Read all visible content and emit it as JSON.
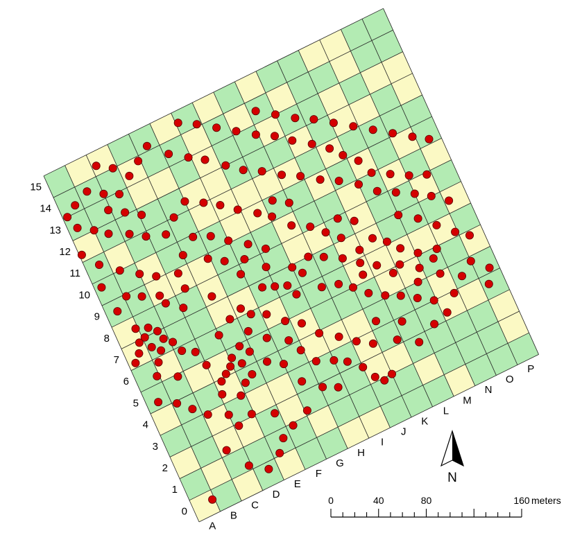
{
  "colors": {
    "cell_green": "#b3ebb3",
    "cell_yellow": "#fbf9c4",
    "grid_line": "#222222",
    "point_fill": "#d40000",
    "point_stroke": "#5a0000",
    "text": "#000000"
  },
  "grid": {
    "columns": 16,
    "rows": 16,
    "column_labels": [
      "A",
      "B",
      "C",
      "D",
      "E",
      "F",
      "G",
      "H",
      "I",
      "J",
      "K",
      "L",
      "M",
      "N",
      "O",
      "P"
    ],
    "row_labels": [
      "0",
      "1",
      "2",
      "3",
      "4",
      "5",
      "6",
      "7",
      "8",
      "9",
      "10",
      "11",
      "12",
      "13",
      "14",
      "15"
    ]
  },
  "scale_bar": {
    "tick_labels": [
      "0",
      "40",
      "80",
      "160"
    ],
    "tick_values": [
      0,
      40,
      80,
      160
    ],
    "unit": "meters"
  },
  "north_arrow": {
    "label": "N",
    "icon": "north-arrow-icon"
  },
  "points_grid_coords": [
    [
      0.9,
      0.6
    ],
    [
      2.3,
      2.2
    ],
    [
      2.9,
      1.2
    ],
    [
      3.6,
      0.7
    ],
    [
      4.3,
      1.1
    ],
    [
      4.7,
      1.6
    ],
    [
      5.3,
      1.9
    ],
    [
      6.1,
      2.2
    ],
    [
      4.8,
      2.7
    ],
    [
      3.9,
      3.1
    ],
    [
      3.0,
      3.5
    ],
    [
      3.2,
      2.9
    ],
    [
      2.2,
      3.9
    ],
    [
      1.7,
      4.4
    ],
    [
      1.2,
      4.9
    ],
    [
      3.8,
      4.0
    ],
    [
      4.2,
      4.4
    ],
    [
      4.6,
      4.6
    ],
    [
      3.1,
      4.4
    ],
    [
      3.3,
      4.9
    ],
    [
      3.6,
      5.1
    ],
    [
      3.9,
      5.3
    ],
    [
      4.4,
      5.2
    ],
    [
      4.1,
      5.6
    ],
    [
      4.6,
      5.9
    ],
    [
      4.9,
      5.5
    ],
    [
      3.0,
      5.8
    ],
    [
      5.4,
      4.8
    ],
    [
      6.0,
      4.4
    ],
    [
      6.9,
      4.6
    ],
    [
      7.3,
      3.9
    ],
    [
      8.0,
      3.6
    ],
    [
      8.5,
      3.3
    ],
    [
      9.0,
      2.8
    ],
    [
      9.3,
      2.2
    ],
    [
      9.6,
      1.9
    ],
    [
      10.0,
      2.0
    ],
    [
      7.1,
      2.8
    ],
    [
      7.7,
      2.5
    ],
    [
      6.4,
      3.4
    ],
    [
      0.5,
      5.3
    ],
    [
      0.9,
      6.3
    ],
    [
      1.7,
      5.9
    ],
    [
      0.3,
      7.2
    ],
    [
      0.6,
      7.5
    ],
    [
      0.8,
      7.9
    ],
    [
      1.2,
      7.5
    ],
    [
      1.5,
      7.2
    ],
    [
      1.8,
      7.6
    ],
    [
      2.1,
      7.3
    ],
    [
      1.1,
      8.0
    ],
    [
      1.4,
      8.3
    ],
    [
      1.7,
      8.0
    ],
    [
      0.9,
      8.5
    ],
    [
      2.3,
      6.8
    ],
    [
      2.8,
      6.5
    ],
    [
      1.2,
      6.8
    ],
    [
      2.5,
      8.9
    ],
    [
      3.1,
      8.4
    ],
    [
      3.5,
      9.1
    ],
    [
      4.4,
      8.3
    ],
    [
      5.3,
      7.3
    ],
    [
      5.6,
      6.9
    ],
    [
      6.2,
      6.6
    ],
    [
      6.8,
      6.0
    ],
    [
      7.4,
      5.6
    ],
    [
      6.5,
      7.7
    ],
    [
      7.0,
      7.5
    ],
    [
      7.5,
      7.3
    ],
    [
      8.0,
      7.9
    ],
    [
      8.3,
      7.5
    ],
    [
      7.7,
      6.8
    ],
    [
      8.8,
      6.6
    ],
    [
      9.5,
      6.4
    ],
    [
      10.0,
      6.0
    ],
    [
      10.5,
      5.5
    ],
    [
      11.1,
      5.1
    ],
    [
      11.7,
      4.8
    ],
    [
      12.3,
      4.4
    ],
    [
      12.9,
      4.0
    ],
    [
      11.3,
      3.8
    ],
    [
      10.8,
      3.2
    ],
    [
      11.6,
      2.7
    ],
    [
      12.5,
      3.1
    ],
    [
      13.2,
      3.3
    ],
    [
      13.8,
      3.9
    ],
    [
      14.4,
      4.4
    ],
    [
      13.6,
      4.9
    ],
    [
      12.9,
      5.5
    ],
    [
      12.2,
      6.0
    ],
    [
      12.5,
      6.6
    ],
    [
      12.1,
      7.1
    ],
    [
      11.6,
      7.5
    ],
    [
      10.9,
      7.3
    ],
    [
      10.4,
      8.1
    ],
    [
      9.9,
      8.6
    ],
    [
      10.6,
      8.9
    ],
    [
      11.2,
      8.5
    ],
    [
      9.4,
      9.1
    ],
    [
      8.7,
      9.5
    ],
    [
      8.1,
      10.2
    ],
    [
      7.6,
      10.6
    ],
    [
      8.4,
      10.8
    ],
    [
      9.0,
      10.4
    ],
    [
      6.9,
      11.1
    ],
    [
      6.3,
      11.6
    ],
    [
      5.7,
      12.0
    ],
    [
      5.0,
      12.4
    ],
    [
      4.3,
      12.0
    ],
    [
      3.7,
      11.5
    ],
    [
      2.9,
      11.8
    ],
    [
      2.3,
      12.2
    ],
    [
      1.5,
      12.6
    ],
    [
      1.0,
      13.0
    ],
    [
      0.4,
      13.4
    ],
    [
      0.2,
      14.0
    ],
    [
      0.7,
      14.3
    ],
    [
      1.4,
      14.6
    ],
    [
      2.0,
      14.2
    ],
    [
      2.6,
      13.9
    ],
    [
      3.3,
      14.4
    ],
    [
      3.9,
      14.8
    ],
    [
      4.5,
      15.2
    ],
    [
      2.8,
      15.0
    ],
    [
      2.2,
      15.4
    ],
    [
      5.2,
      14.5
    ],
    [
      5.9,
      14.0
    ],
    [
      6.5,
      13.6
    ],
    [
      7.2,
      13.0
    ],
    [
      7.8,
      12.5
    ],
    [
      8.5,
      12.1
    ],
    [
      9.2,
      11.6
    ],
    [
      9.9,
      11.2
    ],
    [
      10.6,
      10.7
    ],
    [
      11.3,
      10.3
    ],
    [
      12.0,
      9.8
    ],
    [
      12.6,
      9.2
    ],
    [
      13.3,
      8.8
    ],
    [
      14.0,
      8.4
    ],
    [
      14.6,
      8.0
    ],
    [
      15.2,
      7.5
    ],
    [
      13.7,
      7.4
    ],
    [
      13.0,
      7.9
    ],
    [
      14.3,
      6.8
    ],
    [
      14.9,
      6.2
    ],
    [
      15.4,
      5.8
    ],
    [
      13.9,
      5.9
    ],
    [
      15.0,
      4.8
    ],
    [
      15.6,
      4.2
    ],
    [
      15.3,
      3.6
    ],
    [
      11.9,
      11.2
    ],
    [
      12.4,
      10.7
    ],
    [
      11.5,
      11.7
    ],
    [
      10.9,
      12.2
    ],
    [
      10.2,
      12.7
    ],
    [
      9.6,
      13.2
    ],
    [
      8.9,
      13.6
    ],
    [
      8.2,
      14.1
    ],
    [
      7.5,
      14.6
    ],
    [
      6.8,
      15.1
    ],
    [
      6.1,
      15.5
    ],
    [
      9.3,
      14.5
    ],
    [
      10.0,
      14.0
    ],
    [
      10.7,
      13.5
    ],
    [
      11.4,
      13.1
    ],
    [
      12.1,
      12.6
    ],
    [
      12.8,
      12.1
    ],
    [
      13.5,
      11.6
    ],
    [
      14.2,
      11.1
    ],
    [
      14.9,
      10.6
    ],
    [
      15.5,
      10.2
    ],
    [
      12.7,
      10.0
    ],
    [
      13.4,
      9.6
    ],
    [
      14.1,
      9.2
    ],
    [
      14.8,
      8.9
    ],
    [
      4.0,
      6.7
    ],
    [
      4.7,
      7.1
    ],
    [
      5.2,
      6.3
    ],
    [
      5.8,
      5.7
    ],
    [
      6.6,
      5.2
    ],
    [
      7.9,
      4.9
    ],
    [
      8.6,
      4.4
    ],
    [
      9.2,
      3.9
    ],
    [
      9.8,
      3.5
    ],
    [
      10.3,
      4.3
    ],
    [
      3.5,
      9.8
    ],
    [
      4.0,
      10.4
    ],
    [
      4.7,
      10.9
    ],
    [
      5.4,
      10.6
    ],
    [
      6.0,
      10.1
    ],
    [
      6.7,
      9.6
    ],
    [
      7.3,
      9.1
    ],
    [
      2.0,
      10.5
    ],
    [
      2.6,
      10.1
    ],
    [
      1.3,
      11.0
    ],
    [
      0.6,
      11.6
    ],
    [
      0.1,
      12.3
    ],
    [
      1.9,
      13.5
    ],
    [
      2.5,
      13.1
    ],
    [
      3.1,
      12.7
    ],
    [
      0.5,
      9.5
    ],
    [
      1.1,
      9.9
    ],
    [
      1.7,
      9.6
    ],
    [
      2.4,
      9.3
    ],
    [
      0.3,
      10.7
    ],
    [
      8.8,
      8.0
    ],
    [
      9.4,
      7.7
    ],
    [
      10.1,
      7.3
    ],
    [
      10.7,
      6.8
    ],
    [
      11.3,
      6.4
    ],
    [
      5.9,
      8.6
    ],
    [
      6.3,
      9.1
    ],
    [
      5.5,
      9.4
    ],
    [
      4.9,
      9.8
    ],
    [
      7.0,
      8.4
    ],
    [
      13.1,
      6.1
    ],
    [
      13.6,
      5.6
    ],
    [
      12.6,
      5.0
    ],
    [
      11.8,
      5.8
    ],
    [
      10.6,
      6.3
    ]
  ]
}
